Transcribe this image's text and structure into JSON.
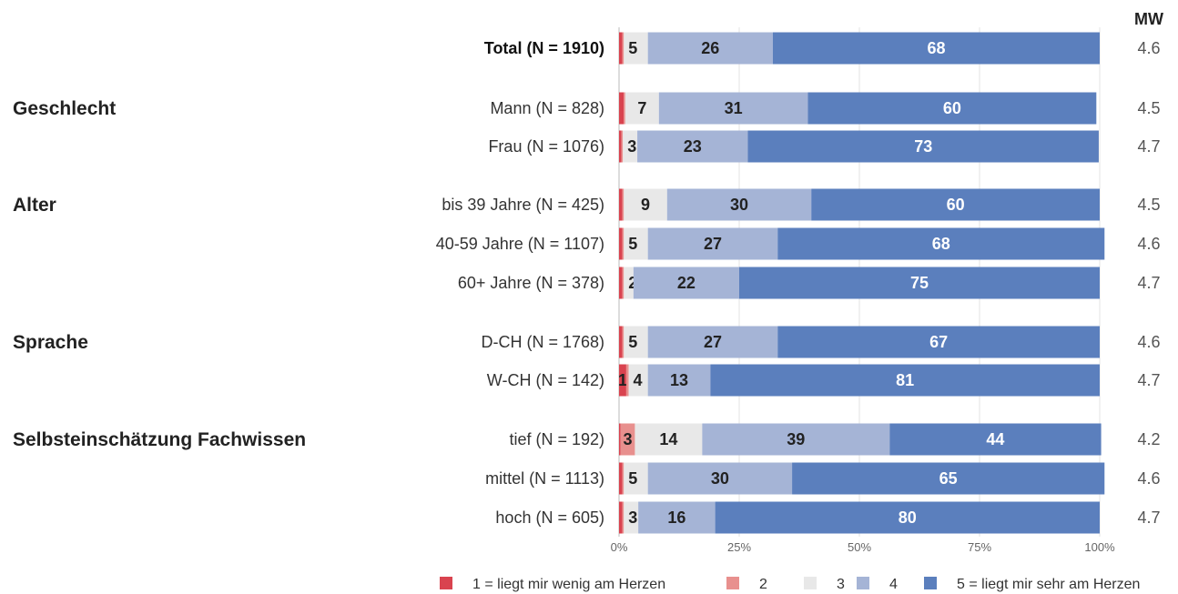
{
  "chart_data": {
    "type": "bar",
    "orientation": "horizontal",
    "stacked": true,
    "unit": "%",
    "xlim": [
      0,
      100
    ],
    "x_ticks": [
      "0%",
      "25%",
      "50%",
      "75%",
      "100%"
    ],
    "mean_header": "MW",
    "legend": {
      "position": "bottom",
      "entries": [
        "1 = liegt mir wenig am Herzen",
        "2",
        "3",
        "4",
        "5 = liegt mir sehr am Herzen"
      ]
    },
    "colors": [
      "#d9434f",
      "#e8908e",
      "#e8e8e8",
      "#a5b4d6",
      "#5b7fbd"
    ],
    "groups": [
      {
        "label": "",
        "rows": [
          {
            "label": "Total (N = 1910)",
            "bold": true,
            "values": [
              0.7,
              0.3,
              5,
              26,
              68
            ],
            "mean": "4.6"
          }
        ]
      },
      {
        "label": "Geschlecht",
        "rows": [
          {
            "label": "Mann (N = 828)",
            "values": [
              1.0,
              0.3,
              7,
              31,
              60
            ],
            "mean": "4.5"
          },
          {
            "label": "Frau (N = 1076)",
            "values": [
              0.5,
              0.3,
              3,
              23,
              73
            ],
            "mean": "4.7"
          }
        ]
      },
      {
        "label": "Alter",
        "rows": [
          {
            "label": "bis 39 Jahre (N = 425)",
            "values": [
              0.7,
              0.3,
              9,
              30,
              60
            ],
            "mean": "4.5"
          },
          {
            "label": "40-59 Jahre (N = 1107)",
            "values": [
              0.7,
              0.3,
              5,
              27,
              68
            ],
            "mean": "4.6"
          },
          {
            "label": "60+ Jahre (N = 378)",
            "values": [
              0.7,
              0.3,
              2,
              22,
              75
            ],
            "mean": "4.7"
          }
        ]
      },
      {
        "label": "Sprache",
        "rows": [
          {
            "label": "D-CH (N = 1768)",
            "values": [
              0.7,
              0.3,
              5,
              27,
              67
            ],
            "mean": "4.6"
          },
          {
            "label": "W-CH (N = 142)",
            "values": [
              1.5,
              0.5,
              4,
              13,
              81
            ],
            "mean": "4.7"
          }
        ]
      },
      {
        "label": "Selbsteinschätzung Fachwissen",
        "rows": [
          {
            "label": "tief (N = 192)",
            "values": [
              0.3,
              3,
              14,
              39,
              44
            ],
            "mean": "4.2"
          },
          {
            "label": "mittel (N = 1113)",
            "values": [
              0.7,
              0.3,
              5,
              30,
              65
            ],
            "mean": "4.6"
          },
          {
            "label": "hoch (N = 605)",
            "values": [
              0.7,
              0.3,
              3,
              16,
              80
            ],
            "mean": "4.7"
          }
        ]
      }
    ],
    "segment_labels": [
      [
        "",
        "",
        "5",
        "26",
        "68"
      ],
      [
        "",
        "",
        "7",
        "31",
        "60"
      ],
      [
        "",
        "",
        "3",
        "23",
        "73"
      ],
      [
        "",
        "",
        "9",
        "30",
        "60"
      ],
      [
        "",
        "",
        "5",
        "27",
        "68"
      ],
      [
        "",
        "",
        "2",
        "22",
        "75"
      ],
      [
        "",
        "",
        "5",
        "27",
        "67"
      ],
      [
        "1",
        "",
        "4",
        "13",
        "81"
      ],
      [
        "",
        "3",
        "14",
        "39",
        "44"
      ],
      [
        "",
        "",
        "5",
        "30",
        "65"
      ],
      [
        "",
        "",
        "3",
        "16",
        "80"
      ]
    ]
  }
}
